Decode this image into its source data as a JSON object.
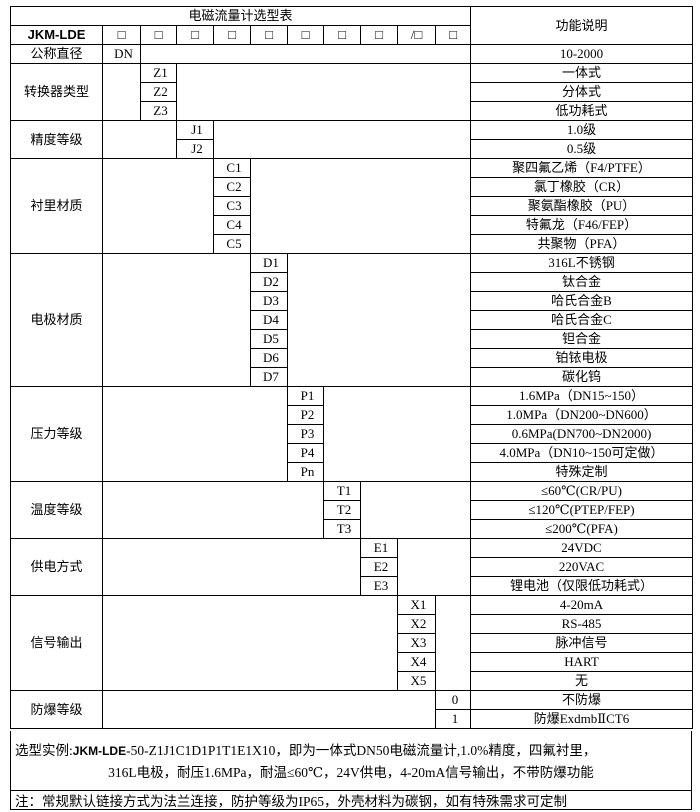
{
  "title": "电磁流量计选型表",
  "function_header": "功能说明",
  "model_prefix": "JKM-LDE",
  "code_boxes": [
    "□",
    "□",
    "□",
    "□",
    "□",
    "□",
    "□",
    "□",
    "/□",
    "□"
  ],
  "groups": [
    {
      "label": "公称直径",
      "col": 1,
      "rows": [
        {
          "code": "DN",
          "desc": "10-2000"
        }
      ]
    },
    {
      "label": "转换器类型",
      "col": 2,
      "rows": [
        {
          "code": "Z1",
          "desc": "一体式"
        },
        {
          "code": "Z2",
          "desc": "分体式"
        },
        {
          "code": "Z3",
          "desc": "低功耗式"
        }
      ]
    },
    {
      "label": "精度等级",
      "col": 3,
      "rows": [
        {
          "code": "J1",
          "desc": "1.0级"
        },
        {
          "code": "J2",
          "desc": "0.5级"
        }
      ]
    },
    {
      "label": "衬里材质",
      "col": 4,
      "rows": [
        {
          "code": "C1",
          "desc": "聚四氟乙烯（F4/PTFE）"
        },
        {
          "code": "C2",
          "desc": "氯丁橡胶（CR）"
        },
        {
          "code": "C3",
          "desc": "聚氨酯橡胶（PU）"
        },
        {
          "code": "C4",
          "desc": "特氟龙（F46/FEP）"
        },
        {
          "code": "C5",
          "desc": "共聚物（PFA）"
        }
      ]
    },
    {
      "label": "电极材质",
      "col": 5,
      "rows": [
        {
          "code": "D1",
          "desc": "316L不锈钢"
        },
        {
          "code": "D2",
          "desc": "钛合金"
        },
        {
          "code": "D3",
          "desc": "哈氏合金B"
        },
        {
          "code": "D4",
          "desc": "哈氏合金C"
        },
        {
          "code": "D5",
          "desc": "钽合金"
        },
        {
          "code": "D6",
          "desc": "铂铱电极"
        },
        {
          "code": "D7",
          "desc": "碳化钨"
        }
      ]
    },
    {
      "label": "压力等级",
      "col": 6,
      "rows": [
        {
          "code": "P1",
          "desc": "1.6MPa（DN15~150）"
        },
        {
          "code": "P2",
          "desc": "1.0MPa（DN200~DN600）"
        },
        {
          "code": "P3",
          "desc": "0.6MPa(DN700~DN2000)"
        },
        {
          "code": "P4",
          "desc": "4.0MPa（DN10~150可定做）"
        },
        {
          "code": "Pn",
          "desc": "特殊定制"
        }
      ]
    },
    {
      "label": "温度等级",
      "col": 7,
      "rows": [
        {
          "code": "T1",
          "desc": "≤60℃(CR/PU)"
        },
        {
          "code": "T2",
          "desc": "≤120℃(PTEP/FEP)"
        },
        {
          "code": "T3",
          "desc": "≤200℃(PFA)"
        }
      ]
    },
    {
      "label": "供电方式",
      "col": 8,
      "rows": [
        {
          "code": "E1",
          "desc": "24VDC"
        },
        {
          "code": "E2",
          "desc": "220VAC"
        },
        {
          "code": "E3",
          "desc": "锂电池（仅限低功耗式）"
        }
      ]
    },
    {
      "label": "信号输出",
      "col": 9,
      "rows": [
        {
          "code": "X1",
          "desc": "4-20mA"
        },
        {
          "code": "X2",
          "desc": "RS-485"
        },
        {
          "code": "X3",
          "desc": "脉冲信号"
        },
        {
          "code": "X4",
          "desc": "HART"
        },
        {
          "code": "X5",
          "desc": "无"
        }
      ]
    },
    {
      "label": "防爆等级",
      "col": 10,
      "rows": [
        {
          "code": "0",
          "desc": "不防爆"
        },
        {
          "code": "1",
          "desc": "防爆ExdmbⅡCT6"
        }
      ]
    }
  ],
  "example": {
    "prefix": "选型实例:",
    "model": "JKM-LDE",
    "line1_rest": "-50-Z1J1C1D1P1T1E1X10，即为一体式DN50电磁流量计,1.0%精度，四氟衬里，",
    "line2": "316L电极，耐压1.6MPa，耐温≤60℃，24V供电，4-20mA信号输出，不带防爆功能"
  },
  "note": "注：常规默认链接方式为法兰连接，防护等级为IP65，外壳材料为碳钢，如有特殊需求可定制"
}
